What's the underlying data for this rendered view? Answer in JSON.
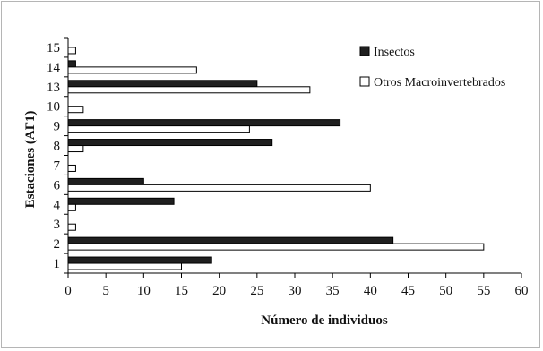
{
  "chart_data": {
    "type": "bar",
    "orientation": "horizontal",
    "xlabel": "Número de individuos",
    "ylabel": "Estaciones (AF1)",
    "xlim": [
      0,
      60
    ],
    "x_ticks": [
      "0",
      "5",
      "10",
      "15",
      "20",
      "25",
      "30",
      "35",
      "40",
      "45",
      "50",
      "55",
      "60"
    ],
    "categories": [
      "1",
      "2",
      "3",
      "4",
      "6",
      "7",
      "8",
      "9",
      "10",
      "13",
      "14",
      "15"
    ],
    "series": [
      {
        "name": "Insectos",
        "color": "#1f1f1f",
        "values": [
          19,
          43,
          0,
          14,
          10,
          0,
          27,
          36,
          0,
          25,
          1,
          0
        ]
      },
      {
        "name": "Otros Macroinvertebrados",
        "color": "#ffffff",
        "values": [
          15,
          55,
          1,
          1,
          40,
          1,
          2,
          24,
          2,
          32,
          17,
          1
        ]
      }
    ],
    "legend_position": "top-right",
    "grid": false
  }
}
